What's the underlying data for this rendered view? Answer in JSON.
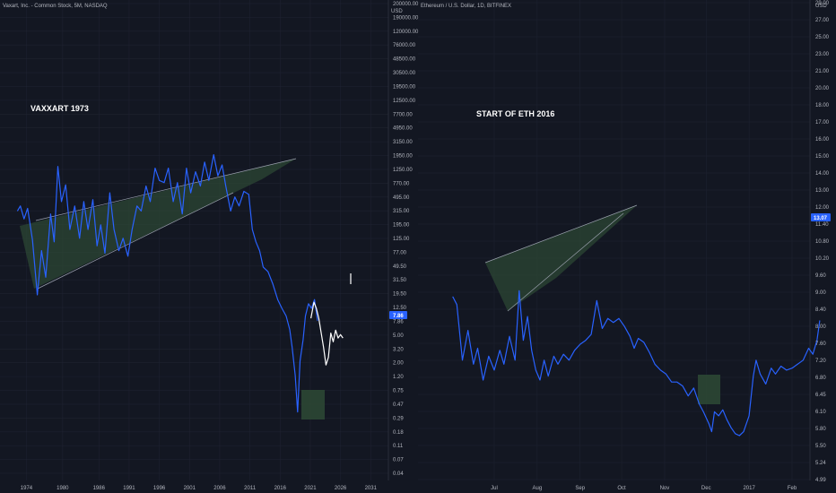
{
  "colors": {
    "background": "#131722",
    "grid": "#1e2230",
    "axis_text": "#b2b5be",
    "price_line": "#2962ff",
    "overlay_line": "#ffffff",
    "pattern_fill": "#2e4a35",
    "trendline": "#9aa0ad",
    "badge": "#2962ff"
  },
  "panels": [
    {
      "id": "vaxart",
      "header": "Vaxart, Inc. - Common Stock, 5M, NASDAQ",
      "annotation": "VAXXART 1973",
      "axis_currency": "USD",
      "current_price_label": "7.86",
      "y_ticks": [
        "200000.00",
        "190000.00",
        "120000.00",
        "76000.00",
        "48500.00",
        "30500.00",
        "19500.00",
        "12500.00",
        "7700.00",
        "4950.00",
        "3150.00",
        "1950.00",
        "1250.00",
        "770.00",
        "495.00",
        "315.00",
        "195.00",
        "125.00",
        "77.00",
        "49.50",
        "31.50",
        "19.50",
        "12.50",
        "7.86",
        "5.00",
        "3.20",
        "2.00",
        "1.20",
        "0.75",
        "0.47",
        "0.29",
        "0.18",
        "0.11",
        "0.07",
        "0.04"
      ],
      "x_ticks": [
        "1974",
        "1980",
        "1986",
        "1991",
        "1996",
        "2001",
        "2006",
        "2011",
        "2016",
        "2021",
        "2026",
        "2031"
      ]
    },
    {
      "id": "eth",
      "header": "Ethereum / U.S. Dollar, 1D, BITFINEX",
      "annotation": "START OF ETH 2016",
      "axis_currency": "USD",
      "current_price_label": "13.07",
      "y_ticks": [
        "29.00",
        "27.00",
        "25.00",
        "23.00",
        "21.00",
        "20.00",
        "18.00",
        "17.00",
        "16.00",
        "15.00",
        "14.00",
        "13.00",
        "12.00",
        "11.40",
        "10.80",
        "10.20",
        "9.60",
        "9.00",
        "8.40",
        "8.00",
        "7.60",
        "7.20",
        "6.80",
        "6.45",
        "6.10",
        "5.80",
        "5.50",
        "5.24",
        "4.99"
      ],
      "x_ticks": [
        "Jul",
        "Aug",
        "Sep",
        "Oct",
        "Nov",
        "Dec",
        "2017",
        "Feb"
      ]
    }
  ],
  "chart_data": [
    {
      "type": "line",
      "title": "Vaxart, Inc. - Common Stock, 5M, NASDAQ",
      "y_scale": "log",
      "ylim": [
        0.04,
        200000
      ],
      "x_range": [
        1972,
        2032
      ],
      "series": [
        {
          "values": [
            [
              1972.5,
              220
            ],
            [
              1973,
              260
            ],
            [
              1973.6,
              170
            ],
            [
              1974.2,
              240
            ],
            [
              1975,
              85
            ],
            [
              1975.8,
              14
            ],
            [
              1976.5,
              60
            ],
            [
              1977.2,
              25
            ],
            [
              1978,
              200
            ],
            [
              1978.6,
              80
            ],
            [
              1979.2,
              950
            ],
            [
              1979.8,
              300
            ],
            [
              1980.5,
              520
            ],
            [
              1981.2,
              120
            ],
            [
              1982,
              260
            ],
            [
              1982.8,
              90
            ],
            [
              1983.5,
              300
            ],
            [
              1984.2,
              120
            ],
            [
              1985,
              320
            ],
            [
              1985.7,
              70
            ],
            [
              1986.3,
              140
            ],
            [
              1987,
              55
            ],
            [
              1987.8,
              400
            ],
            [
              1988.5,
              120
            ],
            [
              1989.3,
              60
            ],
            [
              1990,
              90
            ],
            [
              1990.8,
              50
            ],
            [
              1991.5,
              120
            ],
            [
              1992.3,
              260
            ],
            [
              1993,
              220
            ],
            [
              1993.8,
              500
            ],
            [
              1994.5,
              300
            ],
            [
              1995.3,
              900
            ],
            [
              1996,
              600
            ],
            [
              1996.8,
              560
            ],
            [
              1997.5,
              900
            ],
            [
              1998.3,
              300
            ],
            [
              1999,
              560
            ],
            [
              1999.8,
              200
            ],
            [
              2000.5,
              900
            ],
            [
              2001.2,
              400
            ],
            [
              2002,
              800
            ],
            [
              2002.8,
              500
            ],
            [
              2003.5,
              1100
            ],
            [
              2004.2,
              600
            ],
            [
              2005,
              1400
            ],
            [
              2005.7,
              700
            ],
            [
              2006.4,
              1000
            ],
            [
              2007,
              500
            ],
            [
              2007.8,
              220
            ],
            [
              2008.5,
              350
            ],
            [
              2009.2,
              260
            ],
            [
              2010,
              420
            ],
            [
              2010.8,
              380
            ],
            [
              2011.4,
              120
            ],
            [
              2012,
              80
            ],
            [
              2012.6,
              60
            ],
            [
              2013.2,
              35
            ],
            [
              2014,
              30
            ],
            [
              2014.8,
              20
            ],
            [
              2015.6,
              12
            ],
            [
              2016.3,
              9
            ],
            [
              2017,
              7
            ],
            [
              2017.6,
              4.5
            ],
            [
              2018,
              2.5
            ],
            [
              2018.5,
              1.0
            ],
            [
              2018.9,
              0.3
            ],
            [
              2019.3,
              1.6
            ],
            [
              2019.8,
              3.2
            ],
            [
              2020.2,
              7.0
            ],
            [
              2020.7,
              10.5
            ],
            [
              2021.2,
              9.0
            ],
            [
              2021.7,
              12.0
            ],
            [
              2022.2,
              6.0
            ]
          ]
        },
        {
          "values": [
            [
              2021.1,
              6.5
            ],
            [
              2021.6,
              11.0
            ],
            [
              2022,
              9.0
            ],
            [
              2022.4,
              6.5
            ],
            [
              2022.8,
              4.0
            ],
            [
              2023.2,
              2.5
            ],
            [
              2023.6,
              1.4
            ],
            [
              2024,
              1.8
            ],
            [
              2024.4,
              4.0
            ],
            [
              2024.8,
              3.0
            ],
            [
              2025.2,
              4.4
            ],
            [
              2025.6,
              3.4
            ],
            [
              2026,
              3.8
            ],
            [
              2026.4,
              3.4
            ]
          ]
        }
      ]
    },
    {
      "type": "line",
      "title": "Ethereum / U.S. Dollar, 1D, BITFINEX",
      "ylim": [
        4.99,
        29.0
      ],
      "series": [
        {
          "values": [
            [
              "2016-06-01",
              14.2
            ],
            [
              "2016-06-04",
              13.8
            ],
            [
              "2016-06-08",
              11.0
            ],
            [
              "2016-06-12",
              12.5
            ],
            [
              "2016-06-16",
              10.8
            ],
            [
              "2016-06-19",
              11.6
            ],
            [
              "2016-06-23",
              10.0
            ],
            [
              "2016-06-27",
              11.2
            ],
            [
              "2016-07-01",
              10.5
            ],
            [
              "2016-07-05",
              11.5
            ],
            [
              "2016-07-08",
              10.8
            ],
            [
              "2016-07-12",
              12.2
            ],
            [
              "2016-07-16",
              11.0
            ],
            [
              "2016-07-19",
              14.5
            ],
            [
              "2016-07-22",
              12.0
            ],
            [
              "2016-07-25",
              13.2
            ],
            [
              "2016-07-28",
              11.5
            ],
            [
              "2016-07-31",
              10.5
            ],
            [
              "2016-08-03",
              10.0
            ],
            [
              "2016-08-06",
              11.0
            ],
            [
              "2016-08-09",
              10.2
            ],
            [
              "2016-08-13",
              11.2
            ],
            [
              "2016-08-16",
              10.8
            ],
            [
              "2016-08-20",
              11.3
            ],
            [
              "2016-08-24",
              11.0
            ],
            [
              "2016-08-28",
              11.5
            ],
            [
              "2016-09-01",
              11.8
            ],
            [
              "2016-09-05",
              12.0
            ],
            [
              "2016-09-09",
              12.3
            ],
            [
              "2016-09-13",
              14.0
            ],
            [
              "2016-09-17",
              12.6
            ],
            [
              "2016-09-21",
              13.1
            ],
            [
              "2016-09-25",
              12.9
            ],
            [
              "2016-09-29",
              13.1
            ],
            [
              "2016-10-03",
              12.7
            ],
            [
              "2016-10-07",
              12.2
            ],
            [
              "2016-10-10",
              11.6
            ],
            [
              "2016-10-13",
              12.1
            ],
            [
              "2016-10-17",
              11.9
            ],
            [
              "2016-10-21",
              11.4
            ],
            [
              "2016-10-25",
              10.8
            ],
            [
              "2016-10-29",
              10.5
            ],
            [
              "2016-11-02",
              10.3
            ],
            [
              "2016-11-06",
              9.9
            ],
            [
              "2016-11-10",
              9.9
            ],
            [
              "2016-11-14",
              9.7
            ],
            [
              "2016-11-18",
              9.2
            ],
            [
              "2016-11-22",
              9.6
            ],
            [
              "2016-11-26",
              8.8
            ],
            [
              "2016-11-29",
              8.4
            ],
            [
              "2016-12-01",
              8.1
            ],
            [
              "2016-12-03",
              7.8
            ],
            [
              "2016-12-05",
              7.4
            ],
            [
              "2016-12-07",
              8.4
            ],
            [
              "2016-12-10",
              8.2
            ],
            [
              "2016-12-13",
              8.5
            ],
            [
              "2016-12-16",
              8.0
            ],
            [
              "2016-12-19",
              7.6
            ],
            [
              "2016-12-22",
              7.3
            ],
            [
              "2016-12-25",
              7.2
            ],
            [
              "2016-12-28",
              7.4
            ],
            [
              "2017-01-01",
              8.2
            ],
            [
              "2017-01-04",
              10.2
            ],
            [
              "2017-01-06",
              11.0
            ],
            [
              "2017-01-09",
              10.3
            ],
            [
              "2017-01-13",
              9.8
            ],
            [
              "2017-01-17",
              10.6
            ],
            [
              "2017-01-20",
              10.3
            ],
            [
              "2017-01-24",
              10.7
            ],
            [
              "2017-01-28",
              10.5
            ],
            [
              "2017-02-01",
              10.6
            ],
            [
              "2017-02-05",
              10.8
            ],
            [
              "2017-02-09",
              11.0
            ],
            [
              "2017-02-13",
              11.6
            ],
            [
              "2017-02-16",
              11.3
            ],
            [
              "2017-02-19",
              12.0
            ],
            [
              "2017-02-21",
              13.0
            ]
          ]
        }
      ]
    }
  ]
}
